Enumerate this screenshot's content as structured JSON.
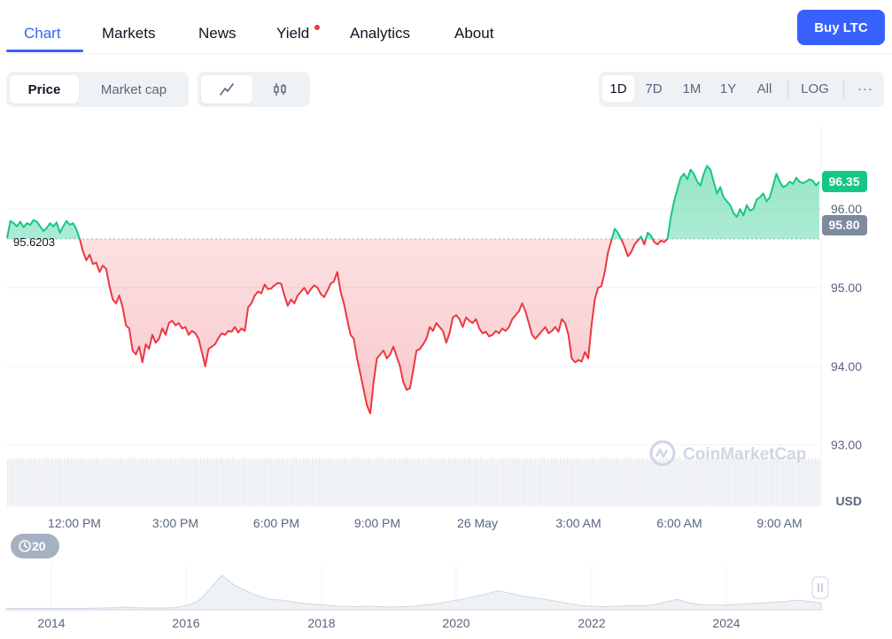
{
  "nav": {
    "tabs": [
      {
        "label": "Chart",
        "active": true
      },
      {
        "label": "Markets",
        "active": false
      },
      {
        "label": "News",
        "active": false
      },
      {
        "label": "Yield",
        "active": false
      },
      {
        "label": "Analytics",
        "active": false
      },
      {
        "label": "About",
        "active": false
      }
    ],
    "buy_label": "Buy LTC"
  },
  "toolbar": {
    "metric_tabs": [
      {
        "label": "Price",
        "active": true
      },
      {
        "label": "Market cap",
        "active": false
      }
    ],
    "view_icons": [
      "line-chart-icon",
      "candlestick-icon"
    ],
    "ranges": [
      {
        "label": "1D",
        "active": true
      },
      {
        "label": "7D",
        "active": false
      },
      {
        "label": "1M",
        "active": false
      },
      {
        "label": "1Y",
        "active": false
      },
      {
        "label": "All",
        "active": false
      }
    ],
    "log_label": "LOG",
    "more_label": "···"
  },
  "colors": {
    "up": "#16c784",
    "down": "#ea3943",
    "accent": "#3861fb",
    "grid": "#eff2f5",
    "axis_text": "#58667e"
  },
  "chart_data": {
    "type": "line",
    "x_ticks": [
      "12:00 PM",
      "3:00 PM",
      "6:00 PM",
      "9:00 PM",
      "26 May",
      "3:00 AM",
      "6:00 AM",
      "9:00 AM"
    ],
    "y_ticks": [
      "96.00",
      "95.00",
      "94.00",
      "93.00"
    ],
    "y_unit": "USD",
    "ylim": [
      92.94,
      97.05
    ],
    "baseline": 95.6203,
    "baseline_label": "95.6203",
    "current_price_label": "96.35",
    "reference_price_label": "95.80",
    "watermark": "CoinMarketCap",
    "grid": true,
    "series": [
      {
        "values": [
          95.63,
          95.85,
          95.82,
          95.78,
          95.84,
          95.77,
          95.82,
          95.8,
          95.86,
          95.84,
          95.78,
          95.72,
          95.76,
          95.82,
          95.78,
          95.83,
          95.7,
          95.78,
          95.85,
          95.8,
          95.82,
          95.74,
          95.62,
          95.46,
          95.35,
          95.42,
          95.3,
          95.32,
          95.2,
          95.28,
          95.24,
          95.02,
          94.85,
          94.8,
          94.9,
          94.75,
          94.52,
          94.48,
          94.2,
          94.15,
          94.25,
          94.05,
          94.28,
          94.22,
          94.4,
          94.3,
          94.35,
          94.48,
          94.4,
          94.55,
          94.58,
          94.52,
          94.55,
          94.48,
          94.5,
          94.4,
          94.45,
          94.42,
          94.35,
          94.18,
          94.0,
          94.22,
          94.25,
          94.28,
          94.36,
          94.42,
          94.4,
          94.45,
          94.44,
          94.5,
          94.43,
          94.48,
          94.45,
          94.75,
          94.8,
          94.9,
          94.95,
          94.93,
          95.04,
          94.98,
          94.99,
          95.03,
          95.06,
          95.05,
          94.9,
          94.77,
          94.85,
          94.8,
          94.9,
          94.95,
          95.0,
          94.92,
          94.98,
          95.03,
          95.0,
          94.92,
          94.88,
          94.96,
          95.05,
          95.08,
          95.2,
          94.95,
          94.8,
          94.6,
          94.4,
          94.35,
          94.1,
          93.9,
          93.7,
          93.5,
          93.4,
          93.8,
          94.1,
          94.15,
          94.2,
          94.1,
          94.15,
          94.25,
          94.12,
          94.0,
          93.8,
          93.7,
          93.72,
          93.95,
          94.2,
          94.22,
          94.28,
          94.35,
          94.5,
          94.45,
          94.55,
          94.5,
          94.45,
          94.3,
          94.42,
          94.62,
          94.65,
          94.6,
          94.5,
          94.62,
          94.58,
          94.55,
          94.6,
          94.48,
          94.42,
          94.44,
          94.38,
          94.4,
          94.45,
          94.42,
          94.48,
          94.45,
          94.5,
          94.6,
          94.65,
          94.7,
          94.8,
          94.7,
          94.55,
          94.4,
          94.35,
          94.4,
          94.45,
          94.5,
          94.42,
          94.45,
          94.5,
          94.44,
          94.6,
          94.55,
          94.4,
          94.1,
          94.05,
          94.08,
          94.06,
          94.18,
          94.1,
          94.52,
          94.85,
          95.0,
          95.02,
          95.2,
          95.45,
          95.6,
          95.75,
          95.7,
          95.62,
          95.52,
          95.4,
          95.45,
          95.55,
          95.6,
          95.65,
          95.55,
          95.7,
          95.66,
          95.58,
          95.55,
          95.6,
          95.58,
          95.62,
          95.9,
          96.1,
          96.25,
          96.4,
          96.45,
          96.38,
          96.5,
          96.45,
          96.35,
          96.3,
          96.45,
          96.55,
          96.5,
          96.35,
          96.2,
          96.28,
          96.15,
          96.1,
          96.05,
          95.95,
          95.9,
          96.0,
          95.92,
          96.05,
          95.98,
          96.0,
          96.12,
          96.15,
          96.2,
          96.1,
          96.15,
          96.3,
          96.45,
          96.35,
          96.28,
          96.3,
          96.35,
          96.32,
          96.4,
          96.35,
          96.33,
          96.35,
          96.38,
          96.36,
          96.3,
          96.35
        ]
      }
    ]
  },
  "overview": {
    "history_count": "20",
    "year_labels": [
      "2014",
      "2016",
      "2018",
      "2020",
      "2022",
      "2024"
    ],
    "series": [
      4,
      4,
      4,
      4,
      4,
      4,
      4,
      4,
      5,
      6,
      8,
      6,
      5,
      5,
      6,
      12,
      25,
      60,
      100,
      72,
      55,
      40,
      30,
      28,
      22,
      18,
      15,
      12,
      10,
      9,
      10,
      9,
      8,
      9,
      10,
      14,
      18,
      24,
      30,
      38,
      45,
      55,
      48,
      40,
      35,
      30,
      24,
      18,
      12,
      10,
      9,
      10,
      12,
      11,
      14,
      22,
      30,
      20,
      15,
      14,
      13,
      16,
      18,
      20,
      22,
      24,
      28,
      24,
      20
    ]
  }
}
